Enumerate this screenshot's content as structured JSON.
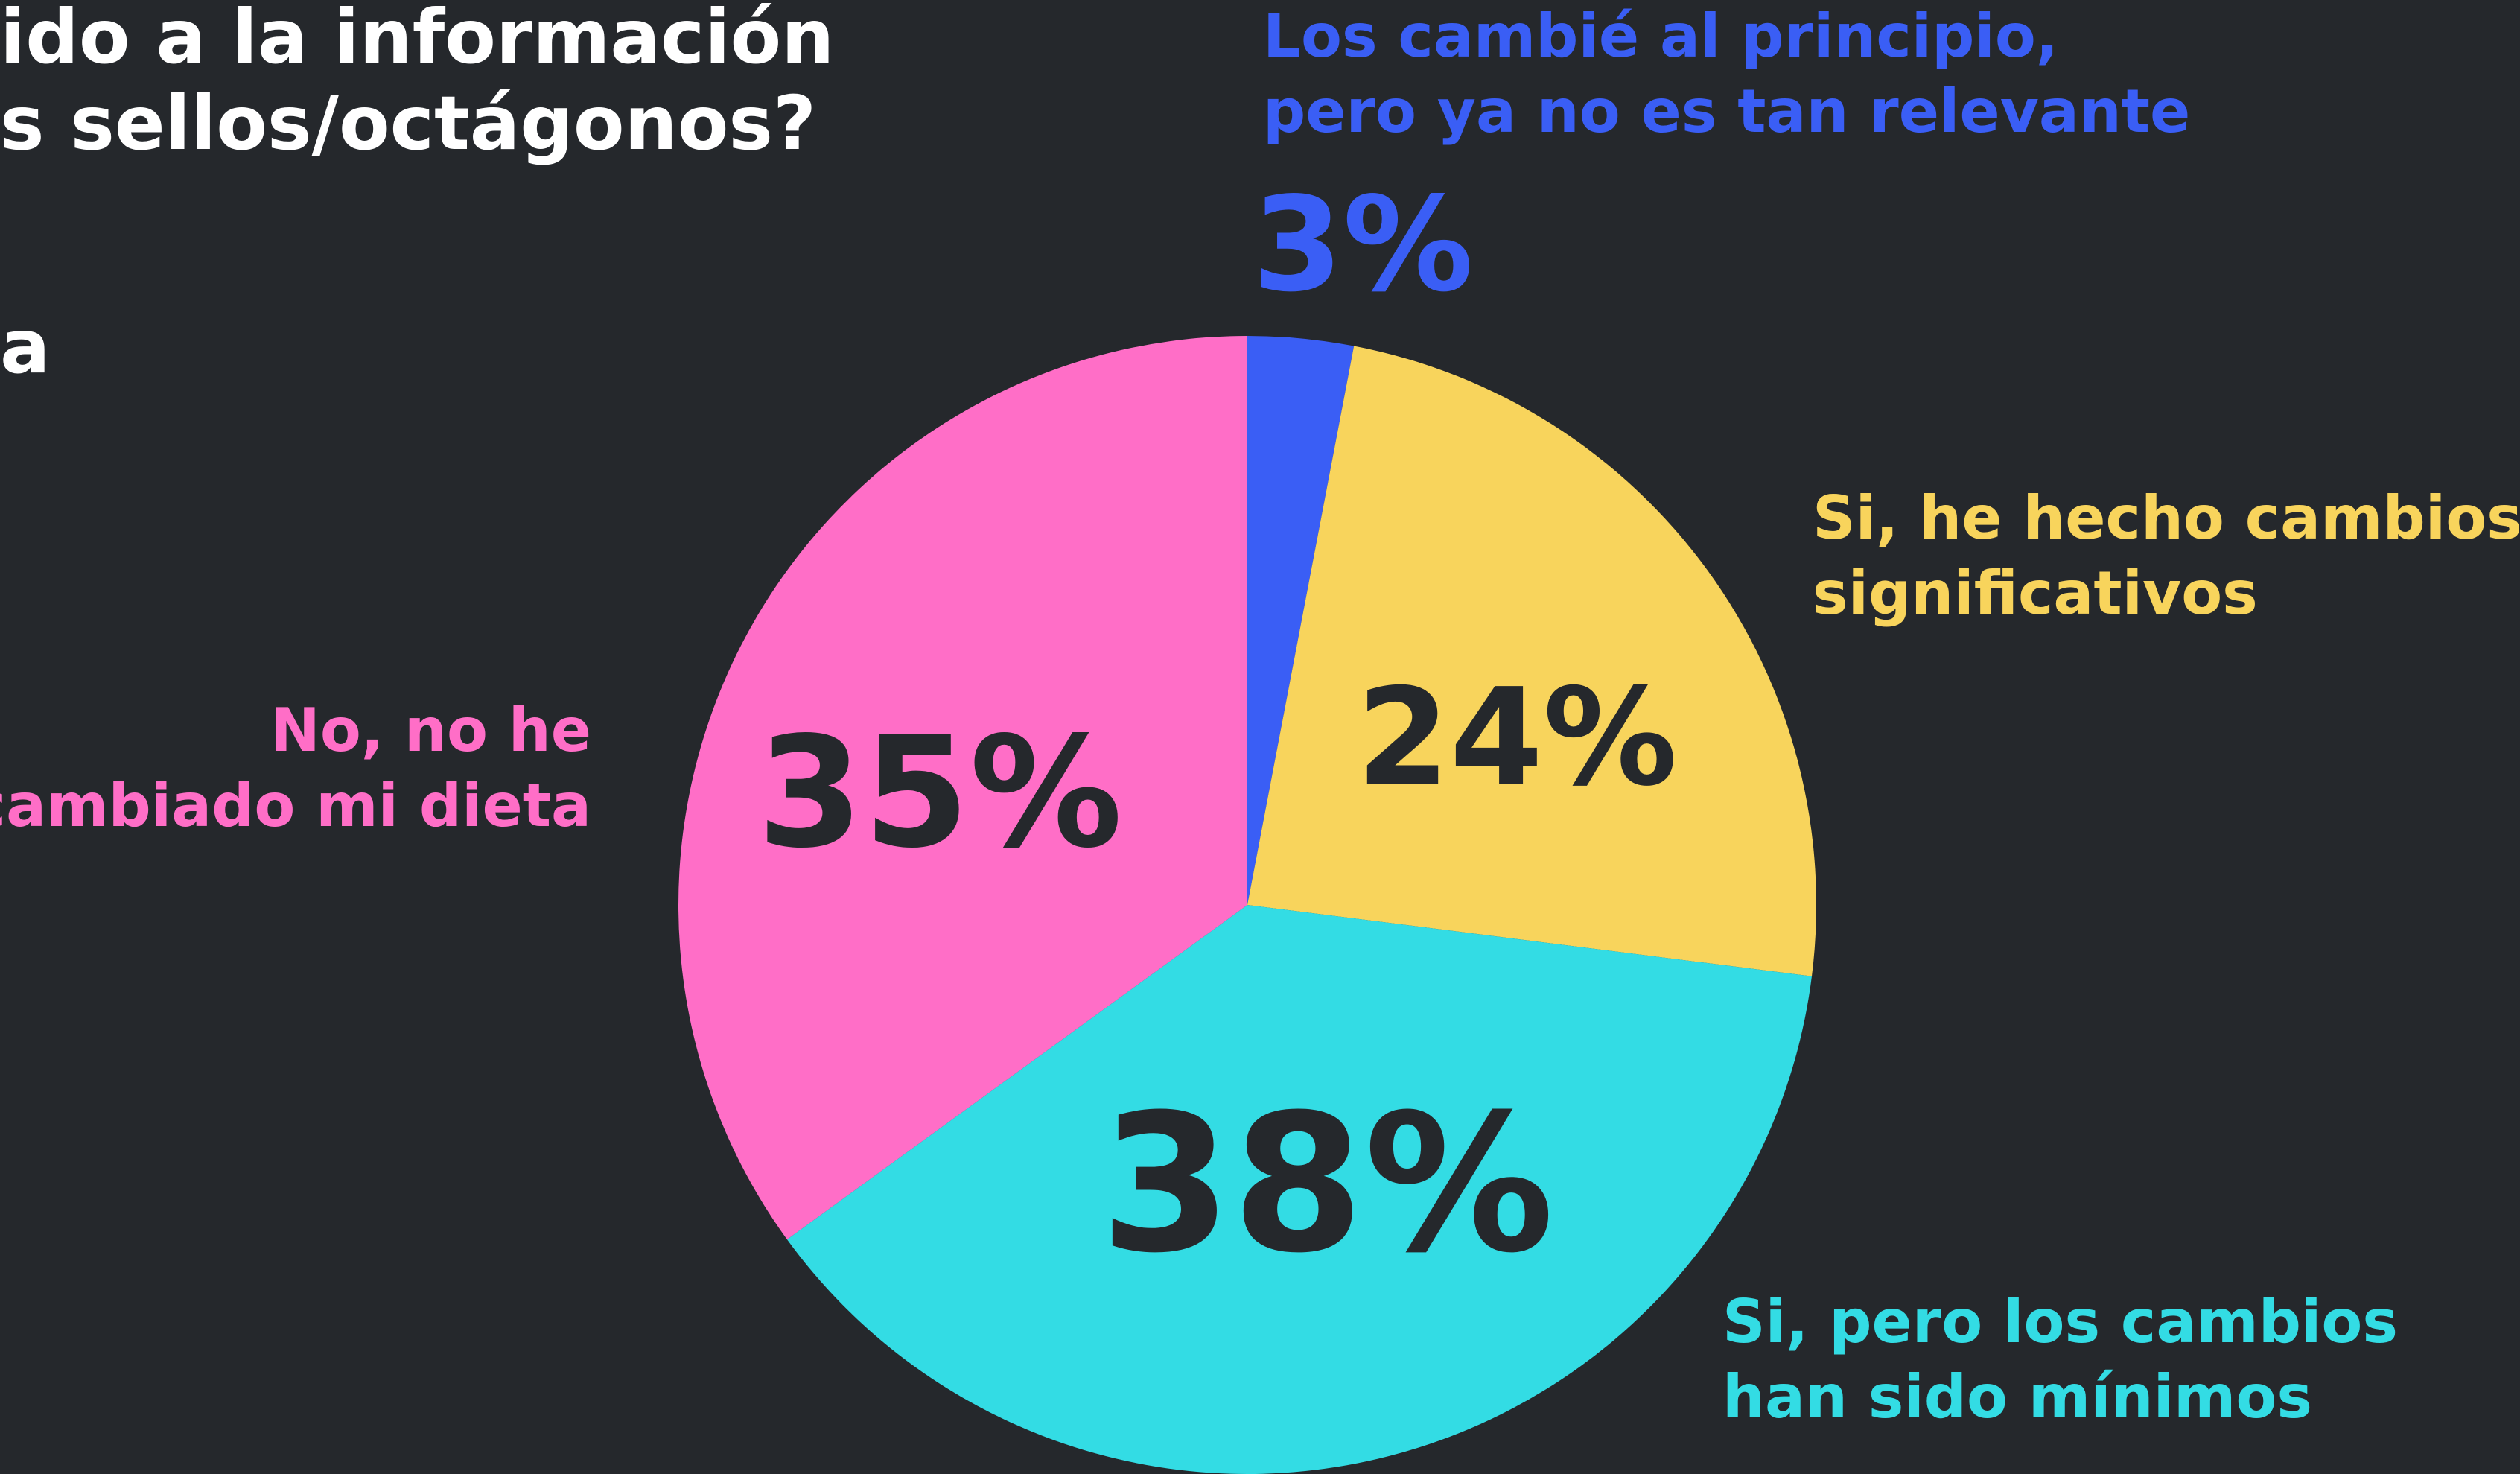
{
  "chart_data": {
    "type": "pie",
    "title_lines": [
      "ido a la información",
      "s sellos/octágonos?",
      "a"
    ],
    "categories": [
      [
        "Los cambié al principio,",
        "pero ya no es tan relevante"
      ],
      [
        "Si, he hecho cambios",
        "significativos"
      ],
      [
        "Si, pero los cambios",
        "han sido mínimos"
      ],
      [
        "No, no he",
        "cambiado mi dieta"
      ]
    ],
    "values": [
      3,
      24,
      38,
      35
    ],
    "value_labels": [
      "3%",
      "24%",
      "38%",
      "35%"
    ],
    "colors": [
      "#3a5ef5",
      "#f8d45c",
      "#33dce4",
      "#ff6ec7"
    ]
  }
}
